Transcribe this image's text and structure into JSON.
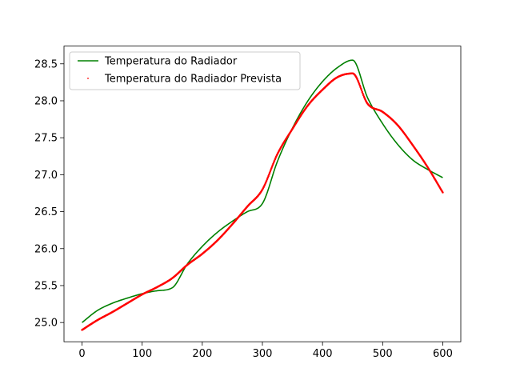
{
  "chart_data": {
    "type": "line",
    "title": "",
    "xlabel": "",
    "ylabel": "",
    "xlim": [
      -30,
      630
    ],
    "ylim": [
      24.74,
      28.74
    ],
    "xticks": [
      0,
      100,
      200,
      300,
      400,
      500,
      600
    ],
    "yticks": [
      25.0,
      25.5,
      26.0,
      26.5,
      27.0,
      27.5,
      28.0,
      28.5
    ],
    "grid": false,
    "legend_position": "upper-left",
    "series": [
      {
        "name": "Temperatura do Radiador",
        "style": "line",
        "color": "#008000",
        "x": [
          0,
          25,
          50,
          75,
          100,
          125,
          150,
          175,
          200,
          225,
          250,
          275,
          300,
          325,
          350,
          375,
          400,
          425,
          450,
          475,
          500,
          525,
          550,
          575,
          600
        ],
        "y": [
          25.0,
          25.16,
          25.26,
          25.33,
          25.39,
          25.43,
          25.47,
          25.79,
          26.03,
          26.22,
          26.37,
          26.5,
          26.61,
          27.18,
          27.63,
          27.99,
          28.26,
          28.45,
          28.55,
          28.04,
          27.69,
          27.41,
          27.2,
          27.07,
          26.96
        ]
      },
      {
        "name": "Temperatura do Radiador Prevista",
        "style": "dots",
        "color": "#ff0000",
        "x": [
          0,
          25,
          50,
          75,
          100,
          125,
          150,
          175,
          200,
          225,
          250,
          275,
          300,
          325,
          350,
          375,
          400,
          425,
          450,
          475,
          500,
          525,
          550,
          575,
          600
        ],
        "y": [
          24.9,
          25.03,
          25.14,
          25.26,
          25.38,
          25.48,
          25.6,
          25.78,
          25.93,
          26.11,
          26.33,
          26.57,
          26.8,
          27.28,
          27.62,
          27.93,
          28.15,
          28.32,
          28.37,
          27.96,
          27.85,
          27.67,
          27.4,
          27.1,
          26.76
        ]
      }
    ]
  }
}
